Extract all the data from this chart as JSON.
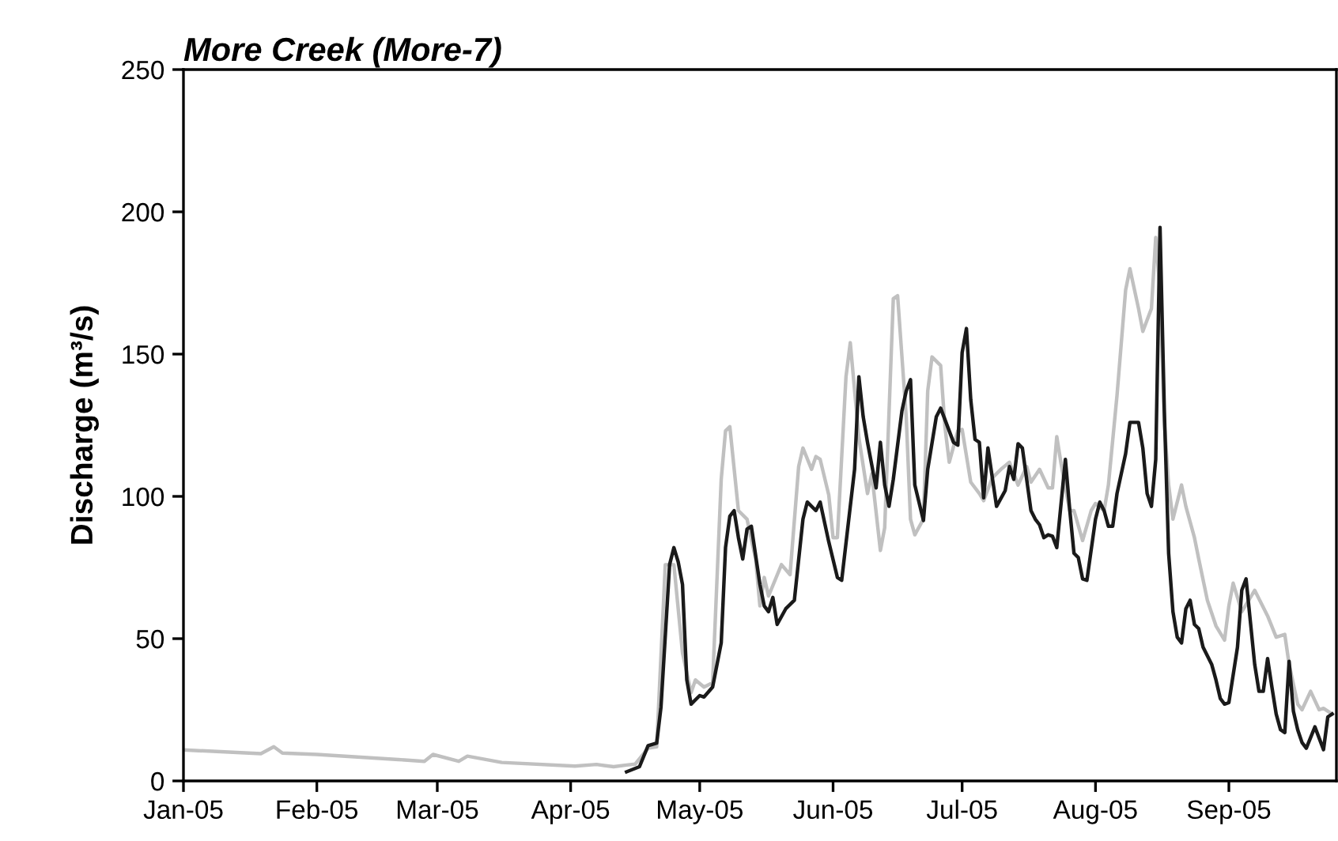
{
  "chart_data": {
    "type": "line",
    "title": "More Creek (More-7)",
    "ylabel": "Discharge (m³/s)",
    "xlim": [
      "2005-01-01",
      "2005-09-26"
    ],
    "xticks": [
      {
        "value": "2005-01-01",
        "label": "Jan-05"
      },
      {
        "value": "2005-02-01",
        "label": "Feb-05"
      },
      {
        "value": "2005-03-01",
        "label": "Mar-05"
      },
      {
        "value": "2005-04-01",
        "label": "Apr-05"
      },
      {
        "value": "2005-05-01",
        "label": "May-05"
      },
      {
        "value": "2005-06-01",
        "label": "Jun-05"
      },
      {
        "value": "2005-07-01",
        "label": "Jul-05"
      },
      {
        "value": "2005-08-01",
        "label": "Aug-05"
      },
      {
        "value": "2005-09-01",
        "label": "Sep-05"
      }
    ],
    "ylim": [
      0,
      250
    ],
    "yticks": [
      0,
      50,
      100,
      150,
      200,
      250
    ],
    "grid": false,
    "legend": false,
    "marker": "none",
    "line_style": "solid",
    "series": [
      {
        "color": "#c0c0c0",
        "x": [
          "2005-01-01",
          "2005-01-19",
          "2005-01-22",
          "2005-01-24",
          "2005-02-01",
          "2005-02-20",
          "2005-02-26",
          "2005-02-28",
          "2005-03-06",
          "2005-03-08",
          "2005-03-16",
          "2005-04-02",
          "2005-04-07",
          "2005-04-11",
          "2005-04-14",
          "2005-04-16",
          "2005-04-19",
          "2005-04-21",
          "2005-04-23",
          "2005-04-25",
          "2005-04-27",
          "2005-04-29",
          "2005-04-30",
          "2005-05-02",
          "2005-05-04",
          "2005-05-06",
          "2005-05-07",
          "2005-05-08",
          "2005-05-10",
          "2005-05-12",
          "2005-05-14",
          "2005-05-15",
          "2005-05-16",
          "2005-05-17",
          "2005-05-20",
          "2005-05-22",
          "2005-05-24",
          "2005-05-25",
          "2005-05-27",
          "2005-05-28",
          "2005-05-29",
          "2005-05-31",
          "2005-06-01",
          "2005-06-02",
          "2005-06-04",
          "2005-06-05",
          "2005-06-07",
          "2005-06-09",
          "2005-06-10",
          "2005-06-12",
          "2005-06-13",
          "2005-06-15",
          "2005-06-16",
          "2005-06-18",
          "2005-06-19",
          "2005-06-20",
          "2005-06-22",
          "2005-06-23",
          "2005-06-24",
          "2005-06-26",
          "2005-06-27",
          "2005-06-28",
          "2005-06-30",
          "2005-07-01",
          "2005-07-03",
          "2005-07-05",
          "2005-07-06",
          "2005-07-08",
          "2005-07-10",
          "2005-07-12",
          "2005-07-14",
          "2005-07-16",
          "2005-07-17",
          "2005-07-19",
          "2005-07-21",
          "2005-07-22",
          "2005-07-23",
          "2005-07-24",
          "2005-07-26",
          "2005-07-27",
          "2005-07-29",
          "2005-07-31",
          "2005-08-01",
          "2005-08-03",
          "2005-08-04",
          "2005-08-06",
          "2005-08-08",
          "2005-08-09",
          "2005-08-11",
          "2005-08-12",
          "2005-08-14",
          "2005-08-15",
          "2005-08-16",
          "2005-08-17",
          "2005-08-18",
          "2005-08-19",
          "2005-08-21",
          "2005-08-22",
          "2005-08-24",
          "2005-08-25",
          "2005-08-27",
          "2005-08-29",
          "2005-08-31",
          "2005-09-01",
          "2005-09-02",
          "2005-09-04",
          "2005-09-06",
          "2005-09-07",
          "2005-09-10",
          "2005-09-12",
          "2005-09-14",
          "2005-09-15",
          "2005-09-17",
          "2005-09-18",
          "2005-09-20",
          "2005-09-22",
          "2005-09-23",
          "2005-09-25"
        ],
        "values": [
          10.9,
          9.6,
          12,
          9.8,
          9.3,
          7.5,
          6.9,
          9.3,
          6.9,
          8.7,
          6.5,
          5.2,
          5.8,
          5.0,
          5.6,
          5.9,
          11.5,
          12,
          76,
          76,
          45,
          31,
          35.5,
          33,
          34.5,
          106,
          123,
          124.5,
          95,
          92,
          78,
          61.5,
          71.5,
          65,
          76,
          72.5,
          110.5,
          117,
          109.5,
          114,
          113,
          100.5,
          85.5,
          85.5,
          142,
          154,
          120.5,
          101,
          108,
          81,
          89,
          169.5,
          170.5,
          128,
          92,
          86.5,
          92,
          137,
          149,
          146,
          124.5,
          112,
          123,
          123.5,
          105,
          101,
          98.5,
          106.5,
          109.5,
          112,
          104,
          110.5,
          105,
          109.5,
          103,
          103,
          121,
          111.5,
          95,
          95,
          84.5,
          95,
          97.5,
          95,
          104,
          135.5,
          172.5,
          180,
          166,
          158,
          166,
          191,
          172.5,
          126,
          104,
          92,
          104,
          96.5,
          85.5,
          78,
          63.5,
          54.5,
          49.5,
          61.5,
          69.5,
          59.5,
          64.5,
          67,
          58,
          50.5,
          51.5,
          41,
          27,
          25,
          31.5,
          25,
          25.5,
          23.5
        ]
      },
      {
        "color": "#1a1a1a",
        "x": [
          "2005-04-14",
          "2005-04-17",
          "2005-04-19",
          "2005-04-21",
          "2005-04-22",
          "2005-04-24",
          "2005-04-25",
          "2005-04-26",
          "2005-04-27",
          "2005-04-28",
          "2005-04-29",
          "2005-05-01",
          "2005-05-02",
          "2005-05-04",
          "2005-05-06",
          "2005-05-07",
          "2005-05-08",
          "2005-05-09",
          "2005-05-10",
          "2005-05-11",
          "2005-05-12",
          "2005-05-13",
          "2005-05-15",
          "2005-05-16",
          "2005-05-17",
          "2005-05-18",
          "2005-05-19",
          "2005-05-21",
          "2005-05-23",
          "2005-05-25",
          "2005-05-26",
          "2005-05-28",
          "2005-05-29",
          "2005-05-31",
          "2005-06-02",
          "2005-06-03",
          "2005-06-06",
          "2005-06-07",
          "2005-06-08",
          "2005-06-09",
          "2005-06-11",
          "2005-06-12",
          "2005-06-13",
          "2005-06-14",
          "2005-06-15",
          "2005-06-17",
          "2005-06-18",
          "2005-06-19",
          "2005-06-20",
          "2005-06-22",
          "2005-06-23",
          "2005-06-25",
          "2005-06-26",
          "2005-06-29",
          "2005-06-30",
          "2005-07-01",
          "2005-07-02",
          "2005-07-03",
          "2005-07-04",
          "2005-07-05",
          "2005-07-06",
          "2005-07-07",
          "2005-07-09",
          "2005-07-11",
          "2005-07-12",
          "2005-07-13",
          "2005-07-14",
          "2005-07-15",
          "2005-07-17",
          "2005-07-18",
          "2005-07-19",
          "2005-07-20",
          "2005-07-21",
          "2005-07-22",
          "2005-07-23",
          "2005-07-25",
          "2005-07-26",
          "2005-07-27",
          "2005-07-28",
          "2005-07-29",
          "2005-07-30",
          "2005-08-01",
          "2005-08-02",
          "2005-08-03",
          "2005-08-04",
          "2005-08-05",
          "2005-08-06",
          "2005-08-08",
          "2005-08-09",
          "2005-08-11",
          "2005-08-12",
          "2005-08-13",
          "2005-08-14",
          "2005-08-15",
          "2005-08-16",
          "2005-08-17",
          "2005-08-18",
          "2005-08-19",
          "2005-08-20",
          "2005-08-21",
          "2005-08-22",
          "2005-08-23",
          "2005-08-24",
          "2005-08-25",
          "2005-08-26",
          "2005-08-28",
          "2005-08-29",
          "2005-08-30",
          "2005-08-31",
          "2005-09-01",
          "2005-09-03",
          "2005-09-04",
          "2005-09-05",
          "2005-09-06",
          "2005-09-07",
          "2005-09-08",
          "2005-09-09",
          "2005-09-10",
          "2005-09-11",
          "2005-09-12",
          "2005-09-13",
          "2005-09-14",
          "2005-09-15",
          "2005-09-16",
          "2005-09-17",
          "2005-09-18",
          "2005-09-19",
          "2005-09-21",
          "2005-09-23",
          "2005-09-24",
          "2005-09-25"
        ],
        "values": [
          3.2,
          5,
          12.4,
          13.3,
          26,
          76,
          82,
          77,
          69,
          35.5,
          27,
          30,
          29.5,
          33,
          48.5,
          82,
          93,
          95,
          85.5,
          78,
          88.5,
          89.5,
          69,
          61.5,
          59.5,
          64.5,
          55,
          60.5,
          63.5,
          92,
          98,
          95,
          98,
          84,
          71.5,
          70.5,
          109.5,
          142,
          128,
          119,
          103,
          119,
          104,
          96.5,
          106,
          130,
          137,
          141,
          104,
          91.5,
          109.5,
          128,
          131,
          119,
          118,
          150.5,
          159,
          134,
          120,
          119,
          99.5,
          117,
          96.5,
          102,
          110.5,
          106,
          118.5,
          117,
          95,
          92,
          90,
          85.5,
          86.5,
          86,
          82,
          113,
          95.5,
          80,
          78.5,
          71,
          70.5,
          92,
          98,
          95,
          89.5,
          89.5,
          101,
          115,
          126,
          126,
          117,
          101,
          96.5,
          113,
          194.5,
          130,
          80,
          59.5,
          50.5,
          48.5,
          60.5,
          63.5,
          55,
          53.5,
          47,
          41,
          35.5,
          29,
          27,
          27.5,
          47,
          67,
          71,
          56,
          41,
          31.5,
          31.5,
          43,
          33,
          23.5,
          18,
          17,
          42,
          24.5,
          18,
          13.5,
          11.5,
          19,
          11,
          22.5,
          23.5
        ]
      }
    ]
  }
}
